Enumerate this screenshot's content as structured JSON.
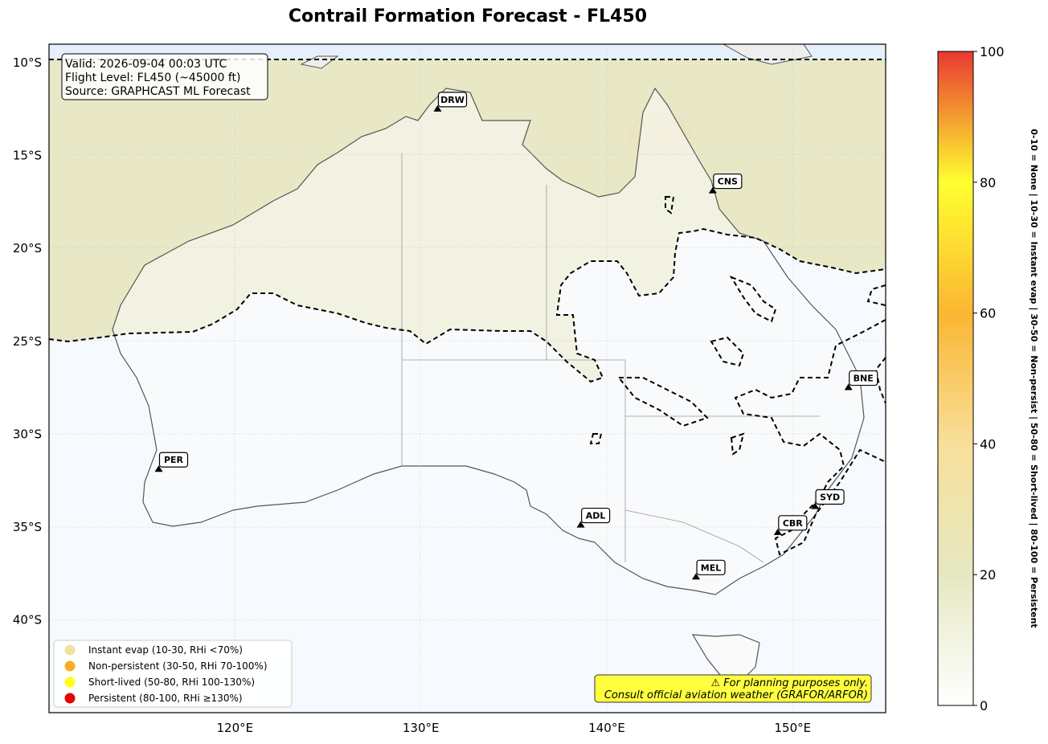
{
  "title": "Contrail Formation Forecast - FL450",
  "info_box": {
    "lines": [
      "Valid: 2026-09-04 00:03 UTC",
      "Flight Level: FL450 (~45000 ft)",
      "Source: GRAPHCAST ML Forecast"
    ]
  },
  "lat_ticks": [
    "10°S",
    "15°S",
    "20°S",
    "25°S",
    "30°S",
    "35°S",
    "40°S"
  ],
  "lon_ticks": [
    "120°E",
    "130°E",
    "140°E",
    "150°E"
  ],
  "airports": [
    {
      "code": "DRW",
      "lon": 130.9,
      "lat": -12.5
    },
    {
      "code": "CNS",
      "lon": 145.7,
      "lat": -16.9
    },
    {
      "code": "BNE",
      "lon": 153.0,
      "lat": -27.5
    },
    {
      "code": "PER",
      "lon": 115.9,
      "lat": -31.9
    },
    {
      "code": "SYD",
      "lon": 151.2,
      "lat": -33.9
    },
    {
      "code": "ADL",
      "lon": 138.6,
      "lat": -34.9
    },
    {
      "code": "CBR",
      "lon": 149.2,
      "lat": -35.3
    },
    {
      "code": "MEL",
      "lon": 144.8,
      "lat": -37.7
    }
  ],
  "legend": [
    {
      "label": "Instant evap (10-30, RHi <70%)",
      "color": "#f0e2a0"
    },
    {
      "label": "Non-persistent (30-50, RHi 70-100%)",
      "color": "#f5b020"
    },
    {
      "label": "Short-lived (50-80, RHi 100-130%)",
      "color": "#ffff10"
    },
    {
      "label": "Persistent (80-100, RHi ≥130%)",
      "color": "#e80000"
    }
  ],
  "disclaimer": {
    "line1": "⚠ For planning purposes only.",
    "line2": "Consult official aviation weather (GRAFOR/ARFOR)"
  },
  "colorbar": {
    "min": 0,
    "max": 100,
    "ticks": [
      "0",
      "20",
      "40",
      "60",
      "80",
      "100"
    ],
    "label": "0-10 = None  |  10-30 = Instant evap  |  30-50 = Non-persist  |  50-80 = Short-lived  |  80-100 = Persistent"
  },
  "map_extent": {
    "lon_min": 110,
    "lon_max": 155,
    "lat_min": -45,
    "lat_max": -9
  }
}
